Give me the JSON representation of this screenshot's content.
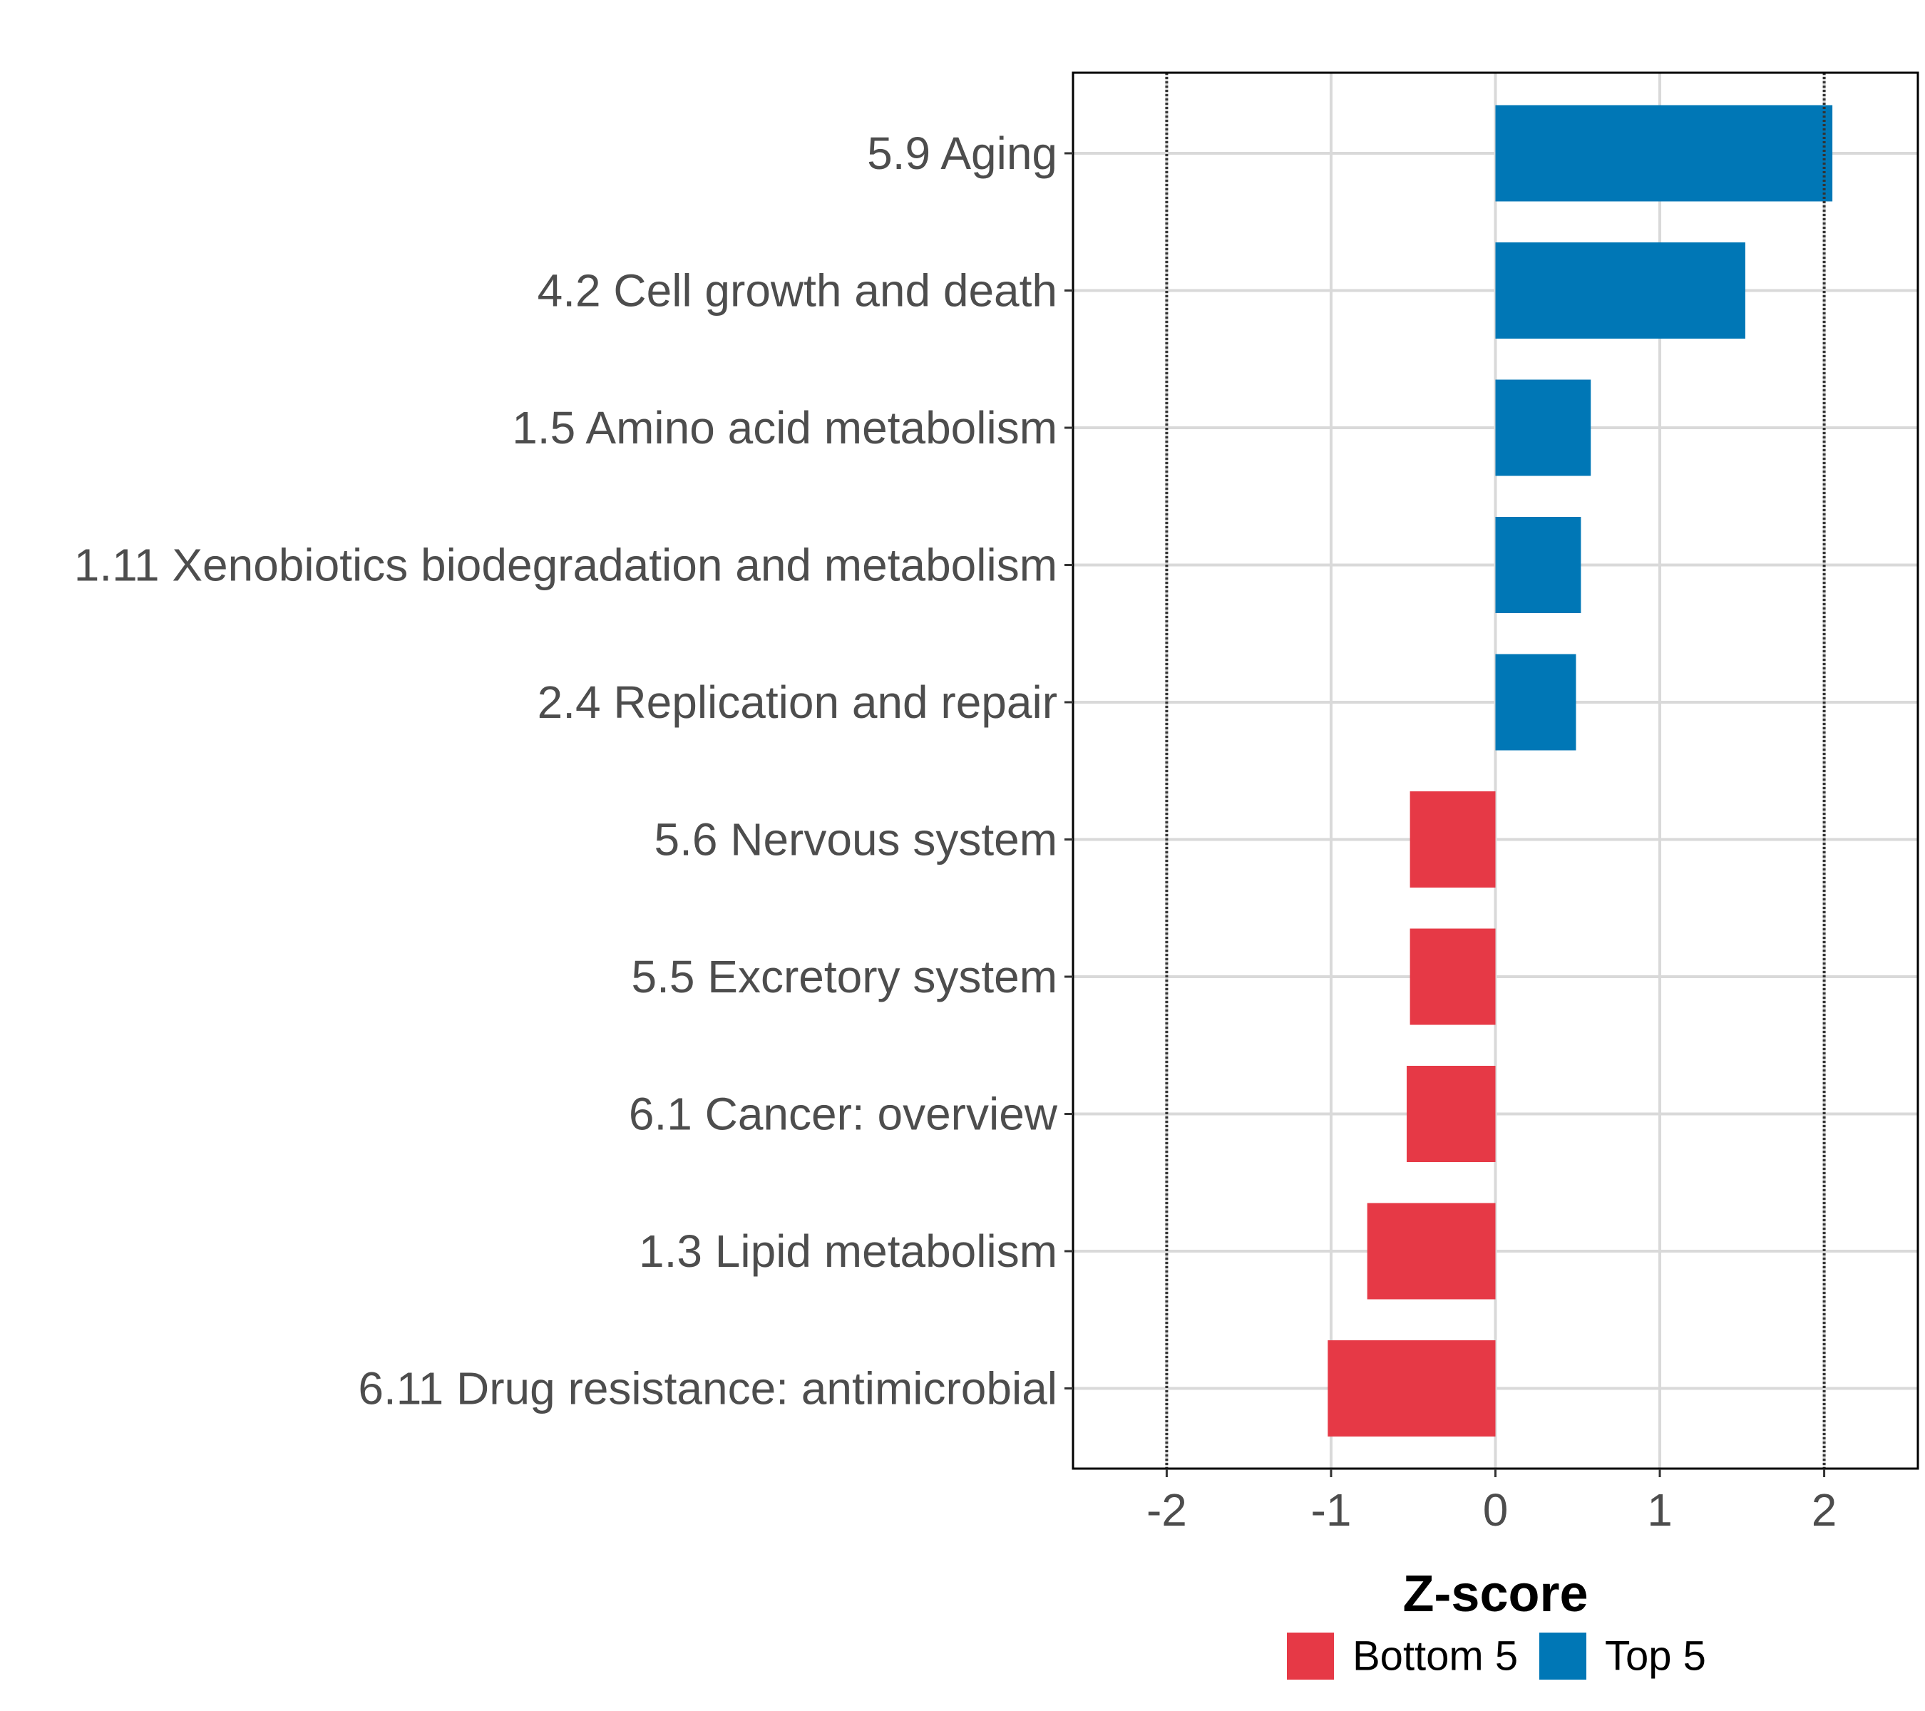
{
  "chart_data": {
    "type": "bar",
    "orientation": "horizontal",
    "xlabel": "Z-score",
    "ylabel": "",
    "xlim": [
      -2.57,
      2.57
    ],
    "x_ticks": [
      -2,
      -1,
      0,
      1,
      2
    ],
    "x_tick_labels": [
      "-2",
      "-1",
      "0",
      "1",
      "2"
    ],
    "reference_lines": [
      -2,
      2
    ],
    "grid": true,
    "categories": [
      "5.9 Aging",
      "4.2 Cell growth and death",
      "1.5 Amino acid metabolism",
      "1.11 Xenobiotics biodegradation and metabolism",
      "2.4 Replication and repair",
      "5.6 Nervous system",
      "5.5 Excretory system",
      "6.1 Cancer: overview",
      "1.3 Lipid metabolism",
      "6.11 Drug resistance: antimicrobial"
    ],
    "values": [
      2.05,
      1.52,
      0.58,
      0.52,
      0.49,
      -0.52,
      -0.52,
      -0.54,
      -0.78,
      -1.02
    ],
    "groups": [
      "Top 5",
      "Top 5",
      "Top 5",
      "Top 5",
      "Top 5",
      "Bottom 5",
      "Bottom 5",
      "Bottom 5",
      "Bottom 5",
      "Bottom 5"
    ],
    "legend": [
      {
        "label": "Bottom 5",
        "color": "#E63946"
      },
      {
        "label": "Top 5",
        "color": "#0077B6"
      }
    ],
    "legend_position": "bottom"
  }
}
